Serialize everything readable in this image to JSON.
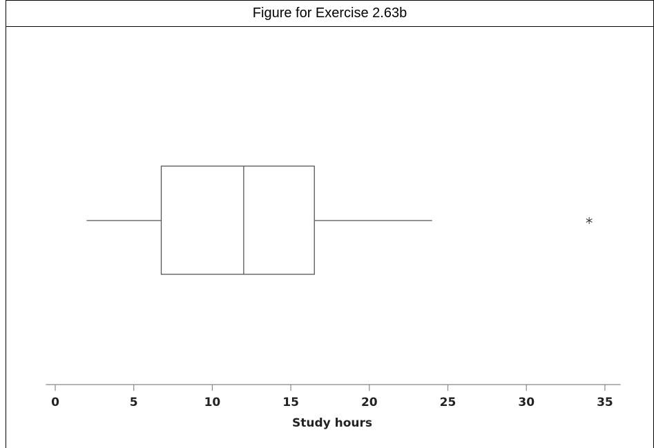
{
  "chart_data": {
    "type": "boxplot",
    "title": "Figure for Exercise 2.63b",
    "xlabel": "Study hours",
    "xlim": [
      -0.6,
      36.0
    ],
    "ticks": [
      0,
      5,
      10,
      15,
      20,
      25,
      30,
      35
    ],
    "tick_labels": [
      "0",
      "5",
      "10",
      "15",
      "20",
      "25",
      "30",
      "35"
    ],
    "box": {
      "whisker_low": 2,
      "q1": 6.75,
      "median": 12,
      "q3": 16.5,
      "whisker_high": 24
    },
    "outliers": [
      34
    ],
    "outlier_symbol": "*",
    "grid": false,
    "colors": {
      "line": "#555555",
      "box_fill": "#ffffff"
    }
  }
}
